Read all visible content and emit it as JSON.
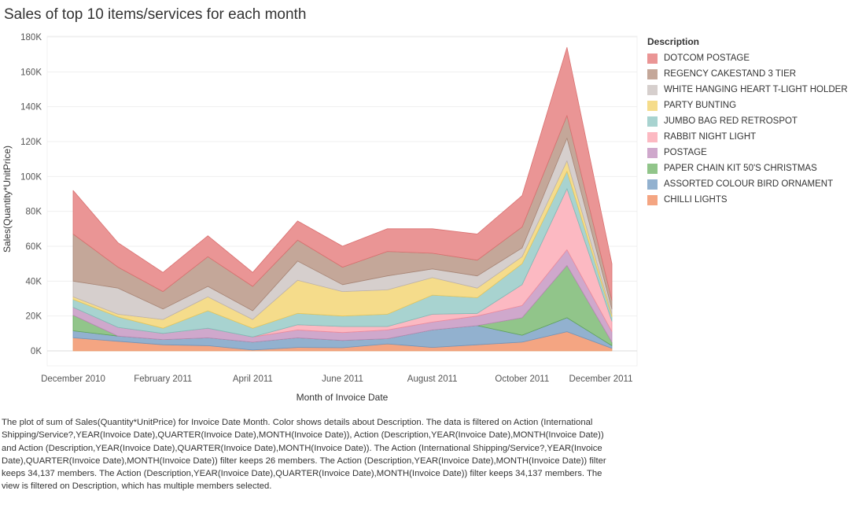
{
  "colors": {
    "background": "#ffffff",
    "gridline": "#efefef",
    "series": [
      "#f4a582",
      "#92b1cf",
      "#91c58a",
      "#cfa8cc",
      "#fcb9c2",
      "#a8d3d0",
      "#f5dc8b",
      "#d6cfcd",
      "#c4a799",
      "#ea9595"
    ],
    "series_stroke": [
      "#e89a6a",
      "#6f93bb",
      "#5fa458",
      "#ba87b6",
      "#f08b9a",
      "#7dbcb7",
      "#e8c65a",
      "#bcb2af",
      "#a88575",
      "#d96f6f"
    ]
  },
  "chart_data": {
    "type": "area",
    "stacked": true,
    "title": "Sales of top 10 items/services for each month",
    "xlabel": "Month of Invoice Date",
    "ylabel": "Sales(Quantity*UnitPrice)",
    "x": [
      "2010-12",
      "2011-01",
      "2011-02",
      "2011-03",
      "2011-04",
      "2011-05",
      "2011-06",
      "2011-07",
      "2011-08",
      "2011-09",
      "2011-10",
      "2011-11",
      "2011-12"
    ],
    "x_ticks": [
      {
        "x": "2010-12",
        "label": "December 2010"
      },
      {
        "x": "2011-02",
        "label": "February 2011"
      },
      {
        "x": "2011-04",
        "label": "April 2011"
      },
      {
        "x": "2011-06",
        "label": "June 2011"
      },
      {
        "x": "2011-08",
        "label": "August 2011"
      },
      {
        "x": "2011-10",
        "label": "October 2011"
      },
      {
        "x": "2011-12",
        "label": "December 2011"
      }
    ],
    "ylim": [
      0,
      180000
    ],
    "y_ticks": [
      {
        "value": 0,
        "label": "0K"
      },
      {
        "value": 20000,
        "label": "20K"
      },
      {
        "value": 40000,
        "label": "40K"
      },
      {
        "value": 60000,
        "label": "60K"
      },
      {
        "value": 80000,
        "label": "80K"
      },
      {
        "value": 100000,
        "label": "100K"
      },
      {
        "value": 120000,
        "label": "120K"
      },
      {
        "value": 140000,
        "label": "140K"
      },
      {
        "value": 160000,
        "label": "160K"
      },
      {
        "value": 180000,
        "label": "180K"
      }
    ],
    "grid": true,
    "legend": {
      "title": "Description",
      "placement": "right"
    },
    "series": [
      {
        "name": "CHILLI LIGHTS",
        "values": [
          7500,
          5500,
          3500,
          3000,
          500,
          2000,
          1800,
          4000,
          2000,
          3500,
          5000,
          11000,
          1500
        ]
      },
      {
        "name": "ASSORTED COLOUR BIRD ORNAMENT",
        "values": [
          4000,
          3000,
          3000,
          4500,
          4500,
          5500,
          4200,
          3000,
          10000,
          11000,
          4000,
          8000,
          1500
        ]
      },
      {
        "name": "PAPER CHAIN KIT 50'S CHRISTMAS",
        "values": [
          9000,
          0,
          0,
          0,
          0,
          0,
          0,
          0,
          0,
          0,
          10000,
          30000,
          2000
        ]
      },
      {
        "name": "POSTAGE",
        "values": [
          4500,
          5000,
          3500,
          5500,
          3000,
          4500,
          4500,
          5000,
          4500,
          5500,
          7000,
          9000,
          6000
        ]
      },
      {
        "name": "RABBIT NIGHT LIGHT",
        "values": [
          0,
          0,
          0,
          0,
          0,
          3000,
          3500,
          2000,
          4500,
          1500,
          12000,
          35000,
          6000
        ]
      },
      {
        "name": "JUMBO BAG RED RETROSPOT",
        "values": [
          4500,
          6000,
          3000,
          10000,
          5000,
          6500,
          6000,
          7000,
          11000,
          9000,
          12000,
          10000,
          2500
        ]
      },
      {
        "name": "PARTY BUNTING",
        "values": [
          1500,
          1500,
          5000,
          8000,
          5000,
          19000,
          14000,
          14000,
          10000,
          5500,
          4000,
          6000,
          1500
        ]
      },
      {
        "name": "WHITE HANGING HEART T-LIGHT HOLDER",
        "values": [
          9000,
          15000,
          6000,
          6000,
          5000,
          11000,
          4000,
          8000,
          5000,
          7000,
          5000,
          13000,
          3000
        ]
      },
      {
        "name": "REGENCY CAKESTAND 3 TIER",
        "values": [
          27000,
          12000,
          10000,
          17000,
          14000,
          12000,
          10000,
          14000,
          9000,
          9000,
          12000,
          13000,
          5000
        ]
      },
      {
        "name": "DOTCOM POSTAGE",
        "values": [
          25000,
          14000,
          11000,
          12000,
          8000,
          11000,
          12000,
          13000,
          14000,
          15000,
          18000,
          39000,
          21000
        ]
      }
    ],
    "legend_order": [
      "DOTCOM POSTAGE",
      "REGENCY CAKESTAND 3 TIER",
      "WHITE HANGING HEART T-LIGHT HOLDER",
      "PARTY BUNTING",
      "JUMBO BAG RED RETROSPOT",
      "RABBIT NIGHT LIGHT",
      "POSTAGE",
      "PAPER CHAIN KIT 50'S CHRISTMAS",
      "ASSORTED COLOUR BIRD ORNAMENT",
      "CHILLI LIGHTS"
    ]
  },
  "caption": "The plot of sum of Sales(Quantity*UnitPrice) for Invoice Date Month.  Color shows details about Description. The data is filtered on Action (International Shipping/Service?,YEAR(Invoice Date),QUARTER(Invoice Date),MONTH(Invoice Date)), Action (Description,YEAR(Invoice Date),MONTH(Invoice Date)) and Action (Description,YEAR(Invoice Date),QUARTER(Invoice Date),MONTH(Invoice Date)). The Action (International Shipping/Service?,YEAR(Invoice Date),QUARTER(Invoice Date),MONTH(Invoice Date)) filter keeps 26 members. The Action (Description,YEAR(Invoice Date),MONTH(Invoice Date)) filter keeps 34,137 members. The Action (Description,YEAR(Invoice Date),QUARTER(Invoice Date),MONTH(Invoice Date)) filter keeps 34,137 members. The view is filtered on Description, which has multiple members selected."
}
